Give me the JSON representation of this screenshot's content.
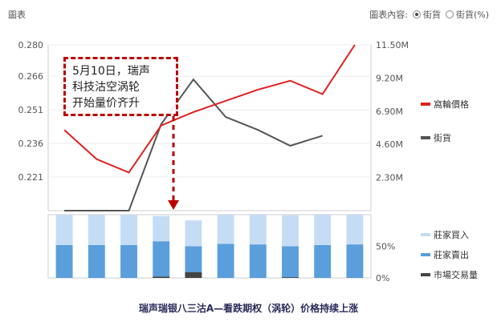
{
  "header": {
    "tab_label": "圖表",
    "options_label": "圖表內容:",
    "option_1": "街貨",
    "option_2": "街貨(%)",
    "selected": "街貨"
  },
  "annotation": {
    "line1": "5月10日，瑞声",
    "line2": "科技沽空涡轮",
    "line3": "开始量价齐升"
  },
  "caption": "瑞声瑞银八三沽A—看跌期权（涡轮）价格持续上涨",
  "colors": {
    "price": "#e02020",
    "outstanding": "#555555",
    "bought": "#c5dcf5",
    "sold": "#5a9fdc",
    "market": "#444444",
    "annotation": "#bb0000"
  },
  "chart_data": [
    {
      "type": "line",
      "x": [
        "1",
        "2",
        "3",
        "4",
        "5",
        "6",
        "7",
        "8",
        "9",
        "10"
      ],
      "left_axis": {
        "ticks": [
          "0.280",
          "0.266",
          "0.251",
          "0.236",
          "0.221"
        ],
        "ylim": [
          0.206,
          0.28
        ]
      },
      "right_axis": {
        "ticks": [
          "11.50M",
          "9.20M",
          "6.90M",
          "4.60M",
          "2.30M"
        ],
        "ylim": [
          0,
          11.5
        ]
      },
      "series": [
        {
          "name": "窩輪價格",
          "axis": "left",
          "values": [
            0.242,
            0.229,
            0.223,
            0.244,
            0.25,
            0.255,
            0.26,
            0.264,
            0.258,
            0.28
          ]
        },
        {
          "name": "街貨",
          "axis": "right",
          "values": [
            0.0,
            0.0,
            0.0,
            6.0,
            9.1,
            6.5,
            5.6,
            4.5,
            5.2,
            null
          ]
        }
      ],
      "legend_position": "right"
    },
    {
      "type": "bar",
      "stacked": true,
      "categories": [
        "1",
        "2",
        "3",
        "4",
        "5",
        "6",
        "7",
        "8",
        "9",
        "10"
      ],
      "y_ticks": [
        "50%",
        "0%"
      ],
      "ylim": [
        0,
        100
      ],
      "series": [
        {
          "name": "莊家買入",
          "values": [
            48,
            48,
            48,
            40,
            41,
            46,
            47,
            49,
            48,
            47
          ]
        },
        {
          "name": "莊家賣出",
          "values": [
            52,
            52,
            52,
            58,
            50,
            54,
            53,
            50,
            52,
            53
          ]
        },
        {
          "name": "市場交易量",
          "values": [
            0,
            0,
            0,
            2,
            9,
            0,
            0,
            1,
            0,
            0
          ]
        }
      ],
      "legend_position": "right"
    }
  ]
}
